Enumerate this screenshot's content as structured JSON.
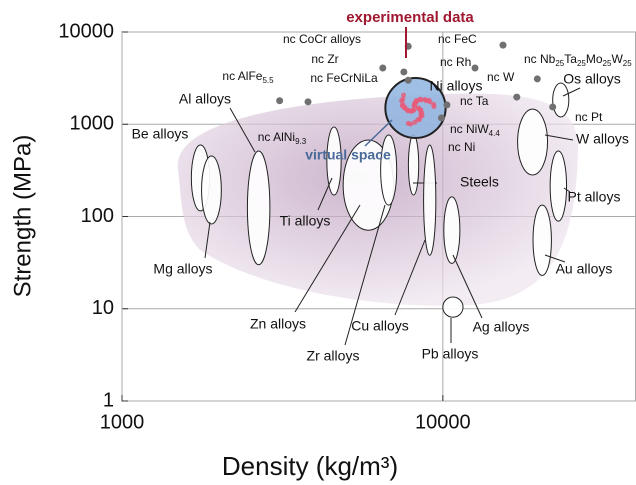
{
  "chart_data": {
    "type": "ashby",
    "x_label": "Density (kg/m³)",
    "y_label": "Strength (MPa)",
    "xlim": [
      1000,
      40000
    ],
    "ylim": [
      1,
      10000
    ],
    "xticks": [
      1000,
      10000
    ],
    "yticks": [
      1,
      10,
      100,
      1000,
      10000
    ],
    "log_x": true,
    "log_y": true,
    "grid": true,
    "annotations": {
      "experimental": "experimental data",
      "virtual": "virtual space"
    },
    "region_color": "#ffffff",
    "point_color": "#707070",
    "regions": [
      {
        "name": "Be alloys",
        "x": [
          1645,
          1875
        ],
        "y": [
          115,
          596
        ]
      },
      {
        "name": "Mg alloys",
        "x": [
          1770,
          2040
        ],
        "y": [
          83,
          453
        ]
      },
      {
        "name": "Al alloys",
        "x": [
          2460,
          2890
        ],
        "y": [
          30,
          513
        ]
      },
      {
        "name": "Ti alloys",
        "x": [
          4350,
          4820
        ],
        "y": [
          171,
          934
        ]
      },
      {
        "name": "Zn alloys",
        "x": [
          4890,
          7020
        ],
        "y": [
          71,
          675
        ]
      },
      {
        "name": "Zr alloys",
        "x": [
          6400,
          7180
        ],
        "y": [
          133,
          764
        ]
      },
      {
        "name": "Steels",
        "x": [
          7810,
          8410
        ],
        "y": [
          171,
          764
        ]
      },
      {
        "name": "Cu alloys",
        "x": [
          8710,
          9510
        ],
        "y": [
          38,
          596
        ]
      },
      {
        "name": "Ni alloys",
        "x": [
          6620,
          10200
        ],
        "y": [
          710,
          3170
        ]
      },
      {
        "name": "Ag alloys",
        "x": [
          10070,
          11300
        ],
        "y": [
          31,
          163
        ]
      },
      {
        "name": "Pb alloys",
        "x": [
          10000,
          11560
        ],
        "y": [
          8.1,
          13.4
        ]
      },
      {
        "name": "W alloys",
        "x": [
          17100,
          21200
        ],
        "y": [
          282,
          1460
        ]
      },
      {
        "name": "Os alloys",
        "x": [
          22000,
          24700
        ],
        "y": [
          1200,
          2800
        ]
      },
      {
        "name": "Pt alloys",
        "x": [
          21600,
          24300
        ],
        "y": [
          89,
          513
        ]
      },
      {
        "name": "Au alloys",
        "x": [
          19100,
          21800
        ],
        "y": [
          23,
          133
        ]
      }
    ],
    "points": [
      {
        "name": "nc AlFe5.5",
        "x": 3100,
        "y": 1800
      },
      {
        "name": "nc AlNi9.3",
        "x": 3800,
        "y": 1750
      },
      {
        "name": "nc CoCr alloys",
        "x": 6500,
        "y": 4070
      },
      {
        "name": "nc Zr",
        "x": 7560,
        "y": 3690
      },
      {
        "name": "nc FeCrNiLa",
        "x": 7800,
        "y": 3000
      },
      {
        "name": "nc FeC",
        "x": 7800,
        "y": 7000
      },
      {
        "name": "nc Rh",
        "x": 12600,
        "y": 4070
      },
      {
        "name": "nc Nb25Ta25Mo25W25",
        "x": 15400,
        "y": 7200
      },
      {
        "name": "nc W",
        "x": 19700,
        "y": 3100
      },
      {
        "name": "nc Ta",
        "x": 17000,
        "y": 1970
      },
      {
        "name": "nc Pt",
        "x": 22000,
        "y": 1540
      },
      {
        "name": "nc NiW4.4",
        "x": 10300,
        "y": 1620
      },
      {
        "name": "nc Ni",
        "x": 9900,
        "y": 1170
      }
    ]
  }
}
